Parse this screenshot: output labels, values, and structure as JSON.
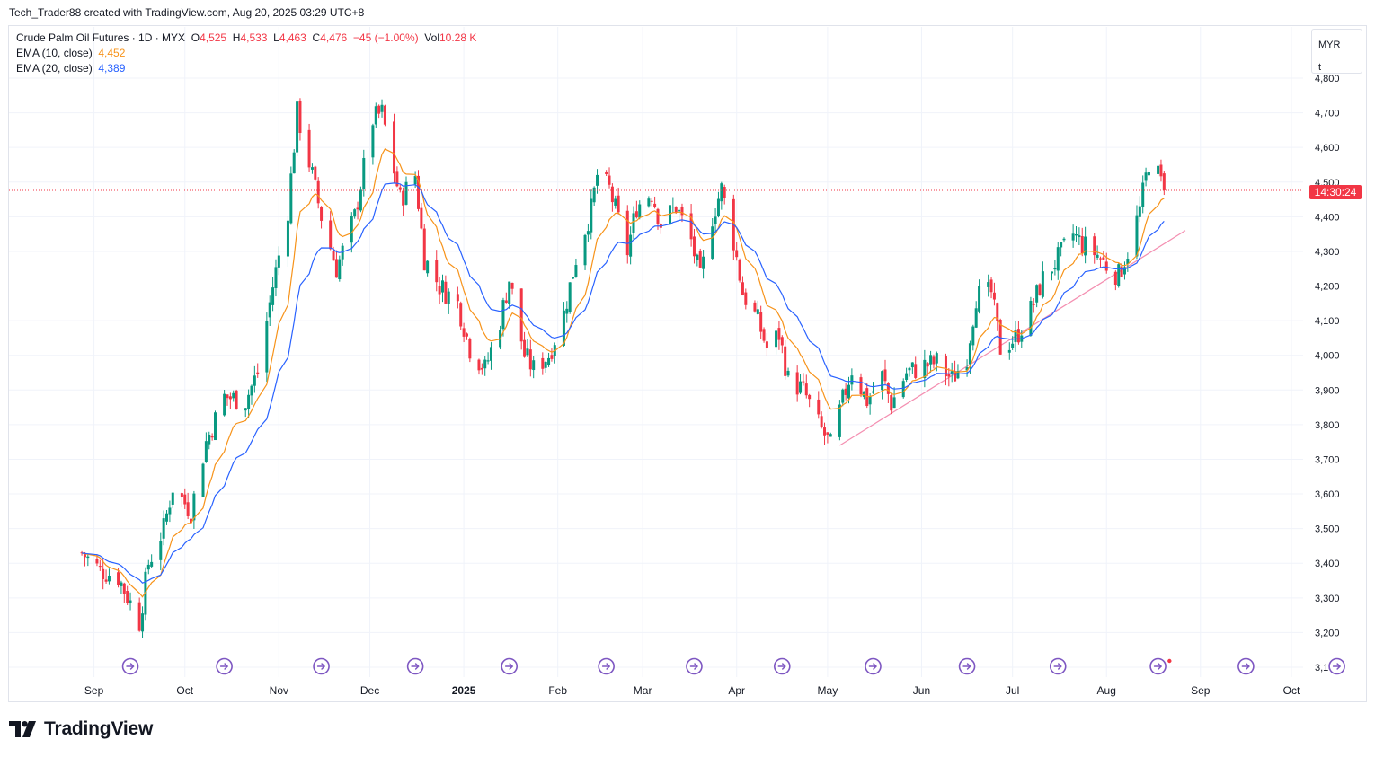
{
  "header": {
    "text": "Tech_Trader88 created with TradingView.com, Aug 20, 2025 03:29 UTC+8"
  },
  "legend": {
    "symbol": "Crude Palm Oil Futures · 1D · MYX",
    "o_label": "O",
    "o": "4,525",
    "h_label": "H",
    "h": "4,533",
    "l_label": "L",
    "l": "4,463",
    "c_label": "C",
    "c": "4,476",
    "chg": "−45 (−1.00%)",
    "vol_label": "Vol",
    "vol": "10.28 K",
    "ema10_label": "EMA (10, close)",
    "ema10_value": "4,452",
    "ema20_label": "EMA (20, close)",
    "ema20_value": "4,389"
  },
  "currency": {
    "line1": "MYR",
    "line2": "t"
  },
  "price_tag": "14:30:24",
  "brand": {
    "name": "TradingView"
  },
  "colors": {
    "up": "#089981",
    "down": "#f23645",
    "ema10": "#f7931a",
    "ema20": "#2962ff",
    "trendline": "#f48fb1",
    "event": "#7e57c2"
  },
  "chart_data": {
    "type": "candlestick",
    "title": "Crude Palm Oil Futures · 1D · MYX",
    "y_ticks": [
      "4,800",
      "4,700",
      "4,600",
      "4,500",
      "4,400",
      "4,300",
      "4,200",
      "4,100",
      "4,000",
      "3,900",
      "3,800",
      "3,700",
      "3,600",
      "3,500",
      "3,400",
      "3,300",
      "3,200",
      "3,100"
    ],
    "x_ticks": [
      "Sep",
      "Oct",
      "Nov",
      "Dec",
      "2025",
      "Feb",
      "Mar",
      "Apr",
      "May",
      "Jun",
      "Jul",
      "Aug",
      "Sep",
      "Oct"
    ],
    "ylim": [
      3100,
      4800
    ],
    "last_price": 4476,
    "grid": true,
    "series": [
      {
        "name": "EMA (10, close)",
        "last": 4452
      },
      {
        "name": "EMA (20, close)",
        "last": 4389
      }
    ],
    "path_points": [
      [
        "2024-08-28",
        3430
      ],
      [
        "2024-09-03",
        3380
      ],
      [
        "2024-09-09",
        3360
      ],
      [
        "2024-09-16",
        3230
      ],
      [
        "2024-09-19",
        3400
      ],
      [
        "2024-09-24",
        3500
      ],
      [
        "2024-09-27",
        3620
      ],
      [
        "2024-10-03",
        3550
      ],
      [
        "2024-10-08",
        3750
      ],
      [
        "2024-10-14",
        3880
      ],
      [
        "2024-10-21",
        3870
      ],
      [
        "2024-10-25",
        3950
      ],
      [
        "2024-10-30",
        4200
      ],
      [
        "2024-11-04",
        4420
      ],
      [
        "2024-11-07",
        4700
      ],
      [
        "2024-11-12",
        4520
      ],
      [
        "2024-11-15",
        4400
      ],
      [
        "2024-11-20",
        4250
      ],
      [
        "2024-11-26",
        4400
      ],
      [
        "2024-12-02",
        4680
      ],
      [
        "2024-12-05",
        4700
      ],
      [
        "2024-12-11",
        4450
      ],
      [
        "2024-12-16",
        4520
      ],
      [
        "2024-12-19",
        4280
      ],
      [
        "2024-12-24",
        4200
      ],
      [
        "2024-12-30",
        4150
      ],
      [
        "2025-01-03",
        4020
      ],
      [
        "2025-01-08",
        3960
      ],
      [
        "2025-01-13",
        4100
      ],
      [
        "2025-01-16",
        4220
      ],
      [
        "2025-01-21",
        4000
      ],
      [
        "2025-01-24",
        3960
      ],
      [
        "2025-01-29",
        4000
      ],
      [
        "2025-02-03",
        4120
      ],
      [
        "2025-02-07",
        4280
      ],
      [
        "2025-02-12",
        4420
      ],
      [
        "2025-02-14",
        4520
      ],
      [
        "2025-02-18",
        4480
      ],
      [
        "2025-02-24",
        4300
      ],
      [
        "2025-02-27",
        4430
      ],
      [
        "2025-03-04",
        4470
      ],
      [
        "2025-03-07",
        4380
      ],
      [
        "2025-03-12",
        4430
      ],
      [
        "2025-03-17",
        4330
      ],
      [
        "2025-03-20",
        4220
      ],
      [
        "2025-03-24",
        4400
      ],
      [
        "2025-03-27",
        4480
      ],
      [
        "2025-03-31",
        4330
      ],
      [
        "2025-04-03",
        4180
      ],
      [
        "2025-04-08",
        4100
      ],
      [
        "2025-04-11",
        4020
      ],
      [
        "2025-04-15",
        4060
      ],
      [
        "2025-04-18",
        3930
      ],
      [
        "2025-04-23",
        3900
      ],
      [
        "2025-04-28",
        3800
      ],
      [
        "2025-05-02",
        3740
      ],
      [
        "2025-05-06",
        3870
      ],
      [
        "2025-05-09",
        3960
      ],
      [
        "2025-05-14",
        3870
      ],
      [
        "2025-05-19",
        3940
      ],
      [
        "2025-05-22",
        3860
      ],
      [
        "2025-05-27",
        3950
      ],
      [
        "2025-06-02",
        3970
      ],
      [
        "2025-06-06",
        3980
      ],
      [
        "2025-06-11",
        3930
      ],
      [
        "2025-06-16",
        4000
      ],
      [
        "2025-06-19",
        4170
      ],
      [
        "2025-06-24",
        4180
      ],
      [
        "2025-06-27",
        4020
      ],
      [
        "2025-07-02",
        4050
      ],
      [
        "2025-07-07",
        4130
      ],
      [
        "2025-07-11",
        4220
      ],
      [
        "2025-07-16",
        4280
      ],
      [
        "2025-07-21",
        4350
      ],
      [
        "2025-07-24",
        4320
      ],
      [
        "2025-07-29",
        4290
      ],
      [
        "2025-08-01",
        4260
      ],
      [
        "2025-08-05",
        4230
      ],
      [
        "2025-08-08",
        4300
      ],
      [
        "2025-08-12",
        4420
      ],
      [
        "2025-08-15",
        4560
      ],
      [
        "2025-08-18",
        4520
      ],
      [
        "2025-08-20",
        4476
      ]
    ],
    "trendline": [
      [
        "2025-05-05",
        3740
      ],
      [
        "2025-08-27",
        4360
      ]
    ],
    "event_marker_dates": [
      "2024-09-13",
      "2024-10-14",
      "2024-11-15",
      "2024-12-16",
      "2025-01-16",
      "2025-02-17",
      "2025-03-18",
      "2025-04-16",
      "2025-05-16",
      "2025-06-16",
      "2025-07-16",
      "2025-08-18",
      "2025-09-16",
      "2025-10-16"
    ]
  }
}
